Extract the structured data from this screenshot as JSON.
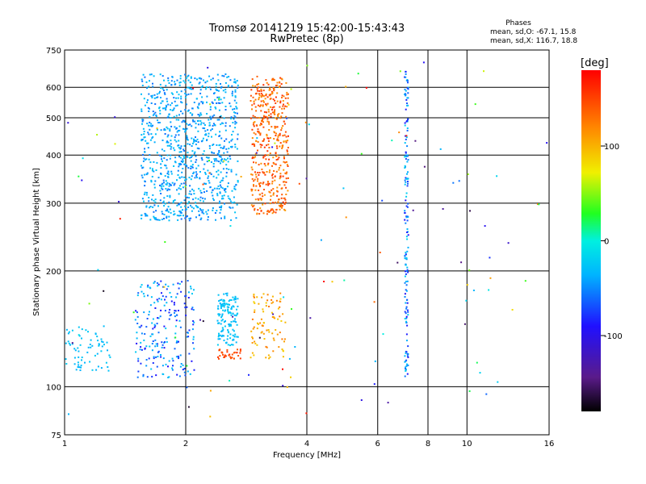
{
  "chart_data": {
    "type": "scatter",
    "title": "Tromsø 20141219 15:42:00-15:43:43",
    "subtitle": "RwPretec (8p)",
    "xlabel": "Frequency [MHz]",
    "ylabel": "Stationary phase Virtual Height [km]",
    "x_scale": "log",
    "y_scale": "log",
    "xlim": [
      1,
      16
    ],
    "ylim": [
      75,
      750
    ],
    "x_ticks": [
      1,
      2,
      4,
      6,
      8,
      10,
      16
    ],
    "y_ticks": [
      75,
      100,
      200,
      300,
      400,
      500,
      600,
      750
    ],
    "grid": true,
    "stats": {
      "title": "Phases",
      "line_o": "mean, sd,O: -67.1, 15.8",
      "line_x": "mean, sd,X: 116.7, 18.8"
    },
    "colorbar": {
      "label": "[deg]",
      "range": [
        -180,
        180
      ],
      "ticks": [
        {
          "value": 100,
          "label": "100"
        },
        {
          "value": 0,
          "label": "0"
        },
        {
          "value": -100,
          "label": "-100"
        }
      ]
    },
    "groups": [
      {
        "f": [
          1.55,
          2.7
        ],
        "h": [
          270,
          650
        ],
        "phase": [
          -80,
          -45
        ],
        "n": 950
      },
      {
        "f": [
          2.9,
          3.6
        ],
        "h": [
          280,
          640
        ],
        "phase": [
          110,
          160
        ],
        "n": 450
      },
      {
        "f": [
          1.5,
          2.1
        ],
        "h": [
          105,
          190
        ],
        "phase": [
          -110,
          -40
        ],
        "n": 220
      },
      {
        "f": [
          1.0,
          1.3
        ],
        "h": [
          110,
          145
        ],
        "phase": [
          -60,
          -40
        ],
        "n": 70
      },
      {
        "f": [
          2.4,
          2.7
        ],
        "h": [
          128,
          175
        ],
        "phase": [
          -60,
          -40
        ],
        "n": 140
      },
      {
        "f": [
          2.4,
          2.75
        ],
        "h": [
          118,
          125
        ],
        "phase": [
          140,
          160
        ],
        "n": 35
      },
      {
        "f": [
          2.9,
          3.55
        ],
        "h": [
          118,
          175
        ],
        "phase": [
          85,
          130
        ],
        "n": 90
      },
      {
        "f": [
          7.0,
          7.15
        ],
        "h": [
          105,
          680
        ],
        "phase": [
          -110,
          -30
        ],
        "n": 160
      },
      {
        "f": [
          1.0,
          16.0
        ],
        "h": [
          80,
          700
        ],
        "phase": [
          -180,
          180
        ],
        "n": 130
      }
    ]
  }
}
